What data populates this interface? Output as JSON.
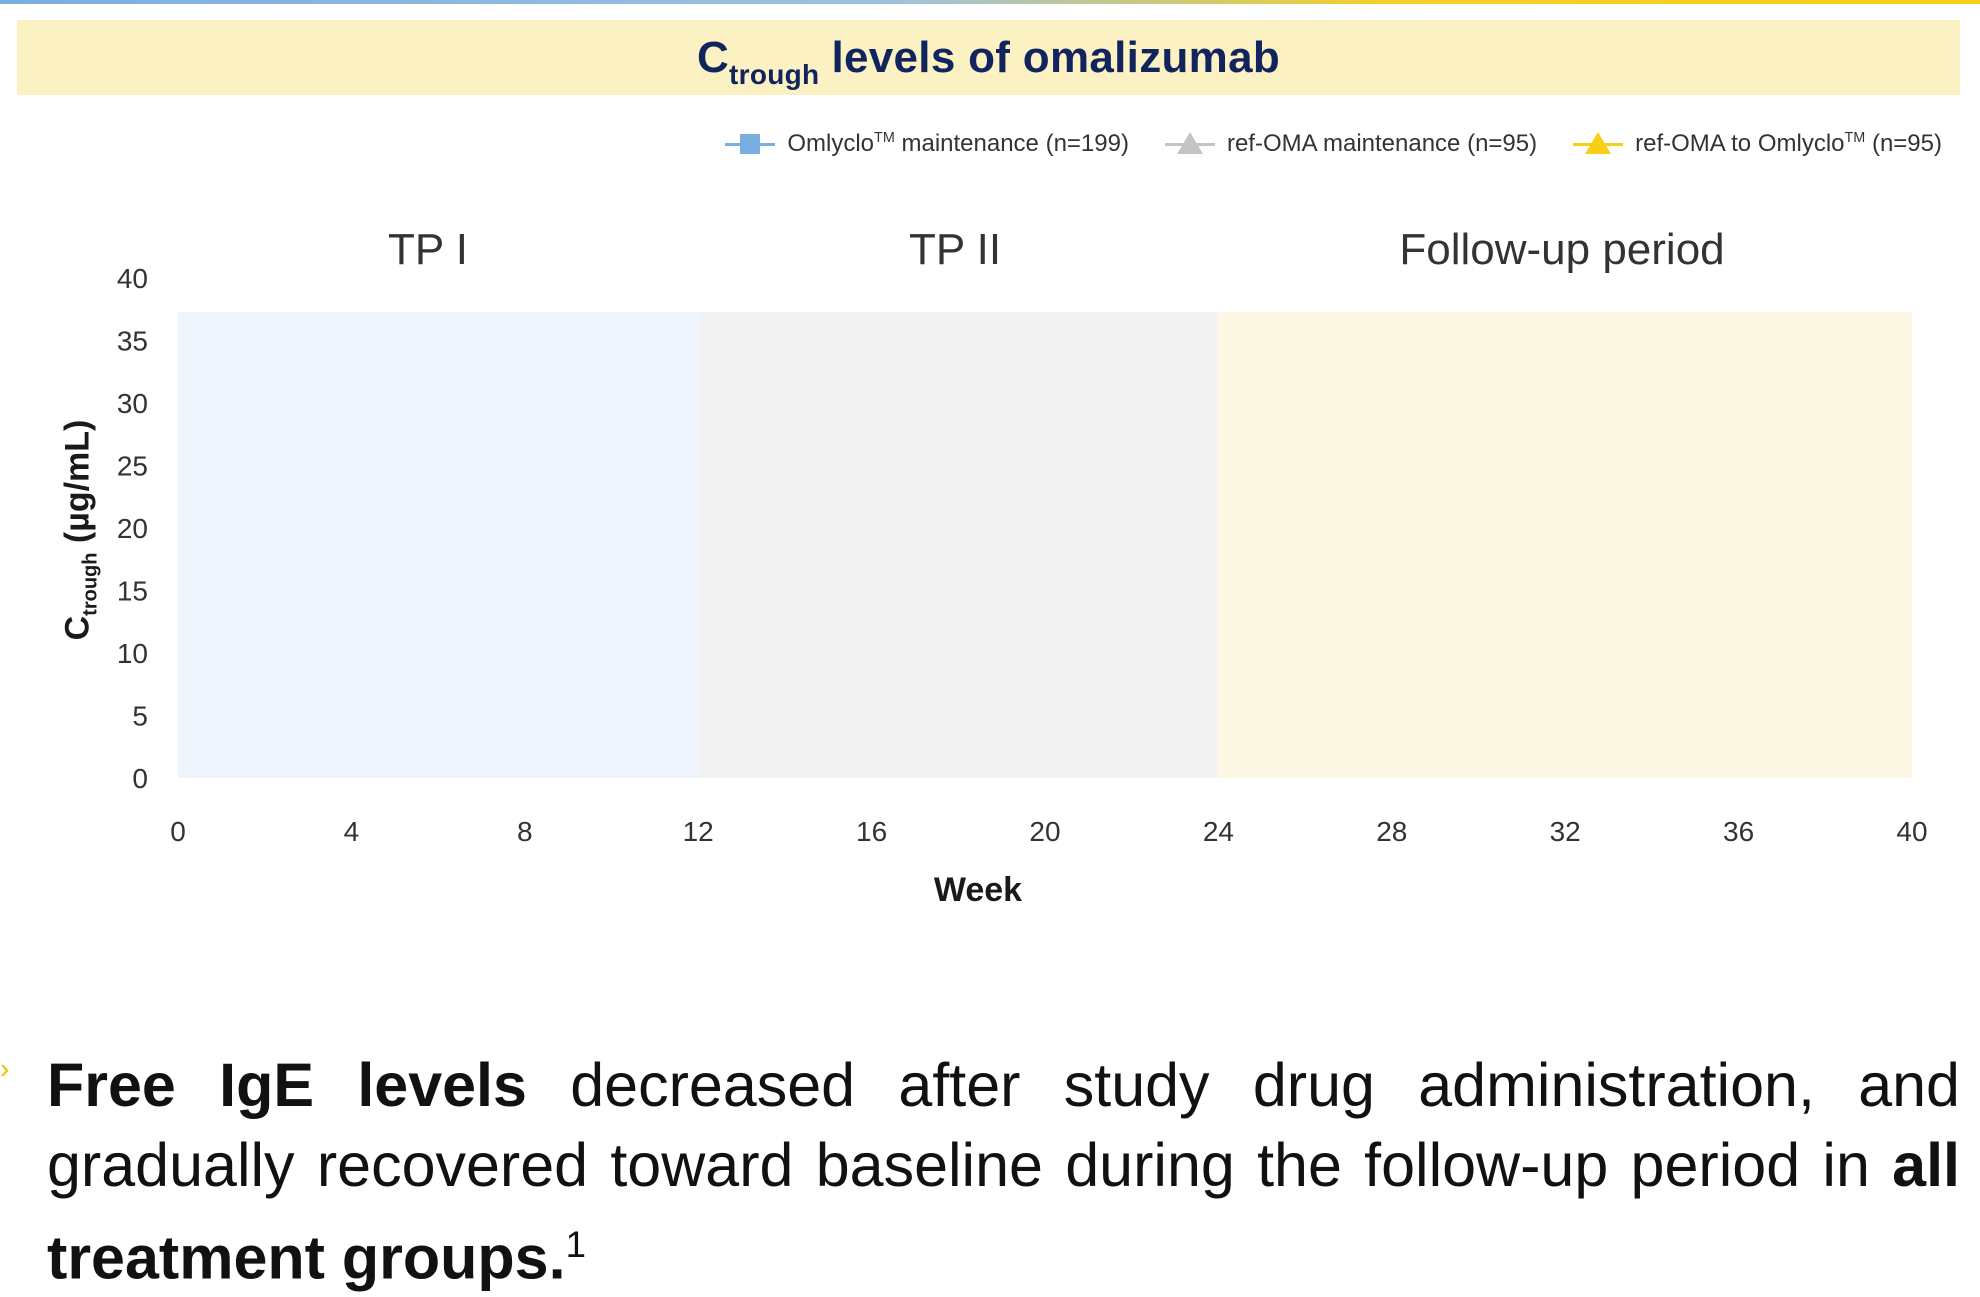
{
  "colors": {
    "title": "#12245e",
    "banner": "#fbf1c3",
    "tp1_shade": "#eef5fd",
    "tp2_shade": "#f2f2f2",
    "followup_shade": "#fdf8e3",
    "series_omlyclo": "#7aaee0",
    "series_refoma": "#c4c4c4",
    "series_switch": "#f7cf16"
  },
  "title": {
    "prefix": "C",
    "subscript": "trough",
    "rest": "levels of omalizumab"
  },
  "legend": [
    {
      "pre": "Omlyclo",
      "tm": "TM",
      "post": " maintenance (n=199)",
      "marker": "square",
      "color": "#7aaee0"
    },
    {
      "pre": "ref-OMA maintenance (n=95)",
      "tm": "",
      "post": "",
      "marker": "triangle",
      "color": "#c4c4c4"
    },
    {
      "pre": "ref-OMA to Omlyclo",
      "tm": "TM",
      "post": " (n=95)",
      "marker": "triangle",
      "color": "#f7cf16"
    }
  ],
  "chart_data": {
    "type": "line",
    "title": "Ctrough levels of omalizumab",
    "xlabel": "Week",
    "ylabel": "Ctrough (µg/mL)",
    "xlim": [
      0,
      40
    ],
    "ylim": [
      0,
      40
    ],
    "x_ticks": [
      "0",
      "4",
      "8",
      "12",
      "16",
      "20",
      "24",
      "28",
      "32",
      "36",
      "40"
    ],
    "y_ticks": [
      "0",
      "5",
      "10",
      "15",
      "20",
      "25",
      "30",
      "35",
      "40"
    ],
    "grid": false,
    "legend_position": "top-right",
    "periods": [
      {
        "label": "TP I",
        "start": 0,
        "end": 12
      },
      {
        "label": "TP II",
        "start": 12,
        "end": 24
      },
      {
        "label": "Follow-up period",
        "start": 24,
        "end": 40
      }
    ],
    "series": [
      {
        "name": "Omlyclo maintenance (n=199)",
        "x": [],
        "values": []
      },
      {
        "name": "ref-OMA maintenance (n=95)",
        "x": [],
        "values": []
      },
      {
        "name": "ref-OMA to Omlyclo (n=95)",
        "x": [],
        "values": []
      }
    ]
  },
  "axis": {
    "ylabel_prefix": "C",
    "ylabel_sub": "trough",
    "ylabel_rest": " (µg/mL)",
    "xlabel": "Week"
  },
  "bullet": {
    "bold1": "Free IgE levels",
    "text1": " decreased after study drug administration, and gradually recovered toward baseline during the follow-up period in ",
    "bold2": "all treatment groups.",
    "footnote": "1"
  }
}
